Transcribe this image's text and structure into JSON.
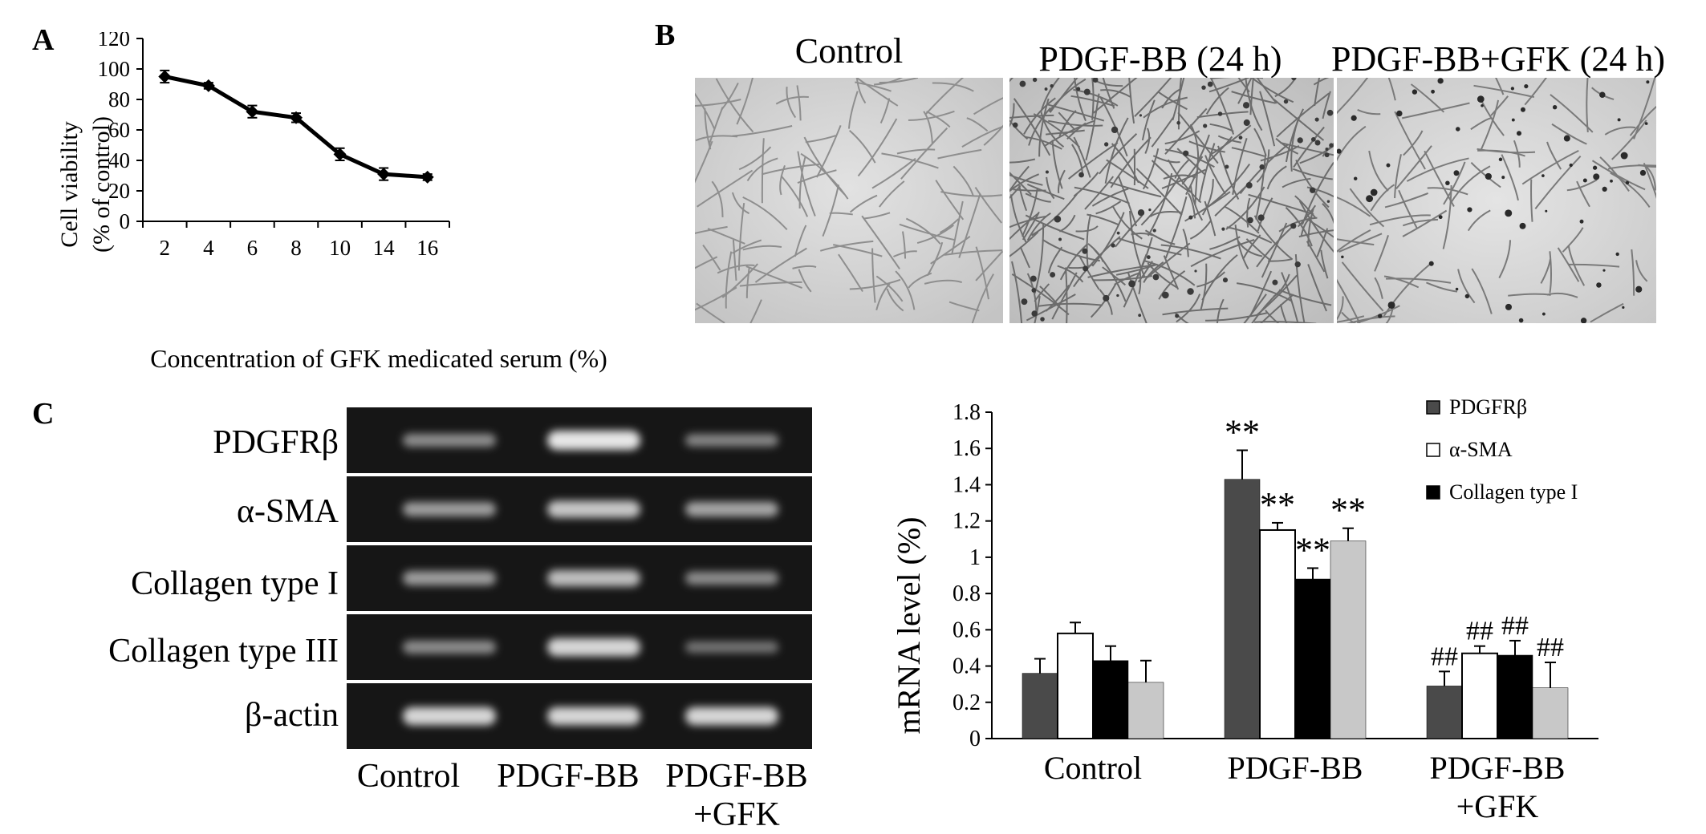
{
  "panels": {
    "a": "A",
    "b": "B",
    "c": "C"
  },
  "chart_a": {
    "ylabel_line1": "Cell viability",
    "ylabel_line2": "(% of control)",
    "xlabel": "Concentration of GFK medicated serum (%)"
  },
  "micrographs": [
    {
      "title": "Control"
    },
    {
      "title": "PDGF-BB (24 h)"
    },
    {
      "title": "PDGF-BB+GFK (24 h)"
    }
  ],
  "gel": {
    "row_labels": [
      "PDGFRβ",
      "α-SMA",
      "Collagen type I",
      "Collagen type III",
      "β-actin"
    ],
    "lane_labels": [
      {
        "line1": "Control",
        "line2": ""
      },
      {
        "line1": "PDGF-BB",
        "line2": ""
      },
      {
        "line1": "PDGF-BB",
        "line2": "+GFK"
      }
    ],
    "band_intensity": [
      [
        0.45,
        1.0,
        0.4
      ],
      [
        0.55,
        0.8,
        0.6
      ],
      [
        0.55,
        0.75,
        0.45
      ],
      [
        0.45,
        0.9,
        0.3
      ],
      [
        0.9,
        0.9,
        0.9
      ]
    ]
  },
  "chart_data": [
    {
      "type": "line",
      "categories": [
        "2",
        "4",
        "6",
        "8",
        "10",
        "14",
        "16"
      ],
      "series": [
        {
          "values": [
            95,
            89,
            72,
            68,
            44,
            31,
            29
          ],
          "errors": [
            4,
            2,
            4,
            3,
            4,
            4,
            2
          ]
        }
      ],
      "ylabel": "Cell viability (% of control)",
      "xlabel": "Concentration of GFK medicated serum (%)",
      "ylim": [
        0,
        120
      ],
      "yticks": [
        0,
        20,
        40,
        60,
        80,
        100,
        120
      ],
      "grid": false,
      "color": "#000000"
    },
    {
      "type": "bar",
      "categories": [
        {
          "line1": "Control",
          "line2": ""
        },
        {
          "line1": "PDGF-BB",
          "line2": ""
        },
        {
          "line1": "PDGF-BB",
          "line2": "+GFK"
        }
      ],
      "series": [
        {
          "name": "PDGFRβ",
          "color": "#4a4a4a",
          "values": [
            0.36,
            1.43,
            0.29
          ],
          "errors": [
            0.08,
            0.16,
            0.08
          ],
          "marks": [
            "",
            "**",
            "##"
          ]
        },
        {
          "name": "α-SMA",
          "color": "#ffffff",
          "values": [
            0.58,
            1.15,
            0.47
          ],
          "errors": [
            0.06,
            0.04,
            0.04
          ],
          "marks": [
            "",
            "**",
            "##"
          ]
        },
        {
          "name": "Collagen type I",
          "color": "#000000",
          "values": [
            0.43,
            0.88,
            0.46
          ],
          "errors": [
            0.08,
            0.06,
            0.08
          ],
          "marks": [
            "",
            "**",
            "##"
          ]
        },
        {
          "color": "#c8c8c8",
          "values": [
            0.31,
            1.09,
            0.28
          ],
          "errors": [
            0.12,
            0.07,
            0.14
          ],
          "marks": [
            "",
            "**",
            "##"
          ]
        }
      ],
      "ylabel": "mRNA level (%)",
      "ylim": [
        0,
        1.8
      ],
      "yticks": [
        "0",
        "0.2",
        "0.4",
        "0.6",
        "0.8",
        "1",
        "1.2",
        "1.4",
        "1.6",
        "1.8"
      ],
      "legend_position": "top-right",
      "grid": false
    }
  ]
}
